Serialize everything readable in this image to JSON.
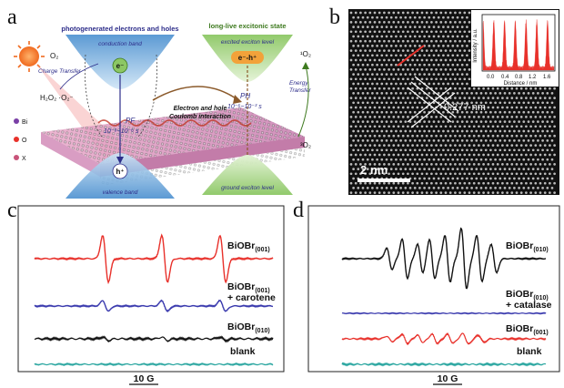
{
  "panel_a": {
    "letter": "a",
    "top_left_title": "photogenerated electrons and holes",
    "top_right_title": "long-live excitonic state",
    "conduction_band": "conduction band",
    "valence_band": "valence band",
    "excited_level": "excited exciton level",
    "ground_level": "ground exciton level",
    "electron": "e⁻",
    "hole": "h⁺",
    "exciton": "e⁻-h⁺",
    "o2_left": "O₂",
    "charge_transfer": "Charge Transfer",
    "h2o2": "H₂O₂ ·O₂⁻",
    "pf": "PF",
    "pf_time": "10⁻⁹~10⁻⁶ s",
    "ph": "PH",
    "ph_time": "10⁻⁶~10⁻³ s",
    "interaction_1": "Electron and hole",
    "interaction_2": "Coulomb interaction",
    "energy_1": "Energy",
    "energy_2": "Transfer",
    "singlet": "¹O₂",
    "triplet": "³O₂",
    "legend": [
      "Bi",
      "O",
      "X"
    ]
  },
  "panel_b": {
    "letter": "b",
    "spacing": "0.277 nm",
    "scale": "2 nm",
    "inset": {
      "ylabel": "Intensity / a.u.",
      "xlabel": "Distance / nm",
      "ticks": [
        "0.0",
        "0.4",
        "0.8",
        "1.2",
        "1.6"
      ]
    }
  },
  "panel_c": {
    "letter": "c",
    "scale": "10 G",
    "labels": [
      {
        "main": "BiOBr",
        "sub": "(001)",
        "extra": ""
      },
      {
        "main": "BiOBr",
        "sub": "(001)",
        "extra": "+ carotene"
      },
      {
        "main": "BiOBr",
        "sub": "(010)",
        "extra": ""
      },
      {
        "main": "blank",
        "sub": "",
        "extra": ""
      }
    ]
  },
  "panel_d": {
    "letter": "d",
    "scale": "10 G",
    "labels": [
      {
        "main": "BiOBr",
        "sub": "(010)",
        "extra": ""
      },
      {
        "main": "BiOBr",
        "sub": "(010)",
        "extra": "+ catalase"
      },
      {
        "main": "BiOBr",
        "sub": "(001)",
        "extra": ""
      },
      {
        "main": "blank",
        "sub": "",
        "extra": ""
      }
    ]
  },
  "colors": {
    "red": "#e8302a",
    "blue": "#3a3aae",
    "black": "#111111",
    "teal": "#2aa6a0",
    "band_blue": "#7fb3d9",
    "band_green": "#9acd7a"
  }
}
